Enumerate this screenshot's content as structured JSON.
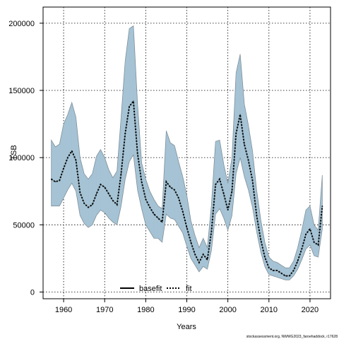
{
  "chart_data": {
    "type": "area",
    "title": "",
    "xlabel": "Years",
    "ylabel": "TSB",
    "xlim": [
      1955,
      2025
    ],
    "ylim": [
      -5000,
      212000
    ],
    "x_ticks": [
      1960,
      1970,
      1980,
      1990,
      2000,
      2010,
      2020
    ],
    "y_ticks": [
      0,
      50000,
      100000,
      150000,
      200000
    ],
    "x_tick_labels": [
      "1960",
      "1970",
      "1980",
      "1990",
      "2000",
      "2010",
      "2020"
    ],
    "y_tick_labels": [
      "0",
      "50000",
      "100000",
      "150000",
      "200000"
    ],
    "grid": true,
    "legend_position": "bottom-center",
    "legend": [
      {
        "name": "basefit",
        "style": "solid",
        "color": "#000000"
      },
      {
        "name": "fit",
        "style": "dotted",
        "color": "#000000"
      }
    ],
    "footnote": "stockassessment.org, NWWG2023_faroehaddock, r17628",
    "band_color": "#a5c3d4",
    "band_edge_color": "#7f8f99",
    "line_color": "#000000",
    "x": [
      1957,
      1958,
      1959,
      1960,
      1961,
      1962,
      1963,
      1964,
      1965,
      1966,
      1967,
      1968,
      1969,
      1970,
      1971,
      1972,
      1973,
      1974,
      1975,
      1976,
      1977,
      1978,
      1979,
      1980,
      1981,
      1982,
      1983,
      1984,
      1985,
      1986,
      1987,
      1988,
      1989,
      1990,
      1991,
      1992,
      1993,
      1994,
      1995,
      1996,
      1997,
      1998,
      1999,
      2000,
      2001,
      2002,
      2003,
      2004,
      2005,
      2006,
      2007,
      2008,
      2009,
      2010,
      2011,
      2012,
      2013,
      2014,
      2015,
      2016,
      2017,
      2018,
      2019,
      2020,
      2021,
      2022,
      2023
    ],
    "series": [
      {
        "name": "fit",
        "values": [
          84000,
          82000,
          83000,
          92000,
          100000,
          105000,
          98000,
          74000,
          66000,
          63000,
          65000,
          73000,
          80000,
          78000,
          73000,
          68000,
          65000,
          88000,
          118000,
          138000,
          142000,
          103000,
          82000,
          69000,
          63000,
          58000,
          55000,
          52000,
          82000,
          78000,
          76000,
          70000,
          60000,
          48000,
          37000,
          28000,
          22000,
          28000,
          24000,
          45000,
          80000,
          84000,
          73000,
          61000,
          75000,
          118000,
          132000,
          110000,
          98000,
          83000,
          57000,
          39000,
          26000,
          18000,
          16000,
          16000,
          14000,
          12000,
          12000,
          16000,
          23000,
          32000,
          43000,
          47000,
          37000,
          35000,
          64000
        ]
      },
      {
        "name": "upper",
        "values": [
          113000,
          108000,
          110000,
          125000,
          132000,
          141000,
          130000,
          100000,
          88000,
          84000,
          88000,
          101000,
          106000,
          100000,
          91000,
          85000,
          90000,
          130000,
          172000,
          196000,
          198000,
          140000,
          96000,
          84000,
          75000,
          69000,
          64000,
          62000,
          120000,
          111000,
          109000,
          97000,
          86000,
          72000,
          53000,
          42000,
          33000,
          40000,
          33000,
          65000,
          112000,
          113000,
          95000,
          81000,
          100000,
          163000,
          177000,
          140000,
          124000,
          105000,
          76000,
          54000,
          37000,
          26000,
          23000,
          22000,
          20000,
          18000,
          18000,
          23000,
          33000,
          46000,
          61000,
          64000,
          50000,
          46000,
          87000
        ]
      },
      {
        "name": "lower",
        "values": [
          64000,
          64000,
          64000,
          70000,
          76000,
          81000,
          75000,
          57000,
          51000,
          48000,
          50000,
          57000,
          61000,
          59000,
          55000,
          52000,
          50000,
          64000,
          84000,
          97000,
          102000,
          76000,
          62000,
          50000,
          45000,
          40000,
          40000,
          37000,
          58000,
          55000,
          54000,
          49000,
          44000,
          34000,
          25000,
          20000,
          15000,
          19000,
          17000,
          31000,
          58000,
          62000,
          55000,
          46000,
          57000,
          88000,
          100000,
          86000,
          76000,
          63000,
          45000,
          30000,
          19000,
          13000,
          12000,
          11000,
          10000,
          9000,
          9000,
          12000,
          17000,
          24000,
          32000,
          35000,
          27000,
          26000,
          47000
        ]
      }
    ]
  }
}
